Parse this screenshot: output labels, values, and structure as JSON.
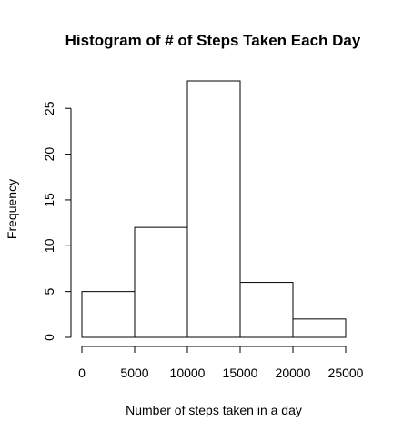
{
  "chart_data": {
    "type": "bar",
    "title": "Histogram of # of Steps Taken Each Day",
    "xlabel": "Number of steps taken in a day",
    "ylabel": "Frequency",
    "bins": [
      {
        "start": 0,
        "end": 5000,
        "value": 5
      },
      {
        "start": 5000,
        "end": 10000,
        "value": 12
      },
      {
        "start": 10000,
        "end": 15000,
        "value": 28
      },
      {
        "start": 15000,
        "end": 20000,
        "value": 6
      },
      {
        "start": 20000,
        "end": 25000,
        "value": 2
      }
    ],
    "xticks": [
      0,
      5000,
      10000,
      15000,
      20000,
      25000
    ],
    "yticks": [
      0,
      5,
      10,
      15,
      20,
      25
    ],
    "xlim": [
      0,
      25000
    ],
    "ylim": [
      0,
      28
    ],
    "grid": false,
    "colors": {
      "bar_fill": "#ffffff",
      "bar_stroke": "#000000",
      "axis": "#000000"
    }
  }
}
